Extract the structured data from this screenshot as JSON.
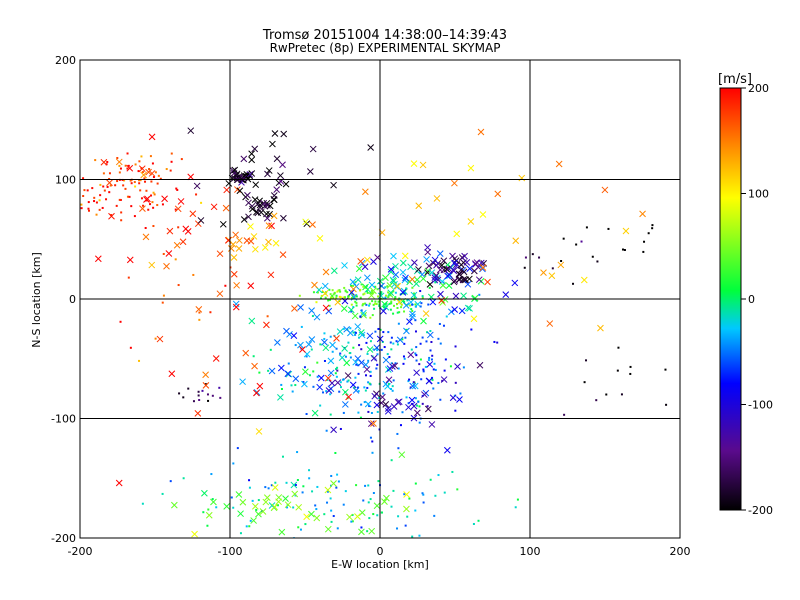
{
  "chart_data": {
    "type": "scatter",
    "title": "Tromsø 20151004 14:38:00–14:39:43",
    "subtitle": "RwPretec (8p) EXPERIMENTAL SKYMAP",
    "xlabel": "E-W location [km]",
    "ylabel": "N-S location [km]",
    "xlim": [
      -200,
      200
    ],
    "ylim": [
      -200,
      200
    ],
    "xticks": [
      "-200",
      "-100",
      "0",
      "100",
      "200"
    ],
    "yticks": [
      "-200",
      "-100",
      "0",
      "100",
      "200"
    ],
    "grid": true,
    "gridlines_x": [
      -100,
      0,
      100
    ],
    "gridlines_y": [
      -100,
      0,
      100
    ],
    "colorbar": {
      "label": "[m/s]",
      "range": [
        -200,
        200
      ],
      "ticks": [
        "200",
        "100",
        "0",
        "-100",
        "-200"
      ],
      "colors": [
        "#000000",
        "#5a0a8c",
        "#0000ff",
        "#00c8ff",
        "#00ff3c",
        "#ffff00",
        "#ff8c00",
        "#ff0000"
      ],
      "placement": "right"
    },
    "point_markers": [
      "dot",
      "x"
    ],
    "clusters": [
      {
        "velocity": 180,
        "marker": "dot",
        "center": [
          -170,
          95
        ],
        "spread": [
          18,
          14
        ],
        "count": 110
      },
      {
        "velocity": 185,
        "marker": "x",
        "center": [
          -150,
          70
        ],
        "spread": [
          40,
          35
        ],
        "count": 45
      },
      {
        "velocity": 175,
        "marker": "dot",
        "center": [
          -140,
          20
        ],
        "spread": [
          30,
          40
        ],
        "count": 20
      },
      {
        "velocity": -195,
        "marker": "x",
        "center": [
          -92,
          100
        ],
        "spread": [
          5,
          3
        ],
        "count": 25
      },
      {
        "velocity": -195,
        "marker": "x",
        "center": [
          -78,
          77
        ],
        "spread": [
          6,
          6
        ],
        "count": 25
      },
      {
        "velocity": -190,
        "marker": "x",
        "center": [
          -70,
          110
        ],
        "spread": [
          30,
          20
        ],
        "count": 30
      },
      {
        "velocity": 130,
        "marker": "x",
        "center": [
          -85,
          50
        ],
        "spread": [
          10,
          8
        ],
        "count": 18
      },
      {
        "velocity": -170,
        "marker": "dot",
        "center": [
          -115,
          -78
        ],
        "spread": [
          8,
          5
        ],
        "count": 14
      },
      {
        "velocity": 45,
        "marker": "dot",
        "center": [
          -25,
          3
        ],
        "spread": [
          12,
          4
        ],
        "count": 60
      },
      {
        "velocity": 25,
        "marker": "dot",
        "center": [
          5,
          0
        ],
        "spread": [
          12,
          6
        ],
        "count": 90
      },
      {
        "velocity": -5,
        "marker": "x",
        "center": [
          20,
          8
        ],
        "spread": [
          25,
          12
        ],
        "count": 70
      },
      {
        "velocity": -160,
        "marker": "x",
        "center": [
          50,
          25
        ],
        "spread": [
          12,
          8
        ],
        "count": 45
      },
      {
        "velocity": -90,
        "marker": "x",
        "center": [
          35,
          20
        ],
        "spread": [
          20,
          15
        ],
        "count": 30
      },
      {
        "velocity": -200,
        "marker": "dot",
        "center": [
          140,
          45
        ],
        "spread": [
          25,
          12
        ],
        "count": 22
      },
      {
        "velocity": -30,
        "marker": "dot",
        "center": [
          -10,
          -50
        ],
        "spread": [
          30,
          30
        ],
        "count": 150
      },
      {
        "velocity": -75,
        "marker": "dot",
        "center": [
          20,
          -60
        ],
        "spread": [
          25,
          30
        ],
        "count": 90
      },
      {
        "velocity": -40,
        "marker": "x",
        "center": [
          -20,
          -40
        ],
        "spread": [
          30,
          30
        ],
        "count": 80
      },
      {
        "velocity": -120,
        "marker": "x",
        "center": [
          10,
          -80
        ],
        "spread": [
          25,
          20
        ],
        "count": 40
      },
      {
        "velocity": -20,
        "marker": "dot",
        "center": [
          -30,
          -170
        ],
        "spread": [
          50,
          20
        ],
        "count": 120
      },
      {
        "velocity": 40,
        "marker": "x",
        "center": [
          -50,
          -170
        ],
        "spread": [
          40,
          20
        ],
        "count": 50
      },
      {
        "velocity": 130,
        "marker": "x",
        "center": [
          60,
          55
        ],
        "spread": [
          60,
          40
        ],
        "count": 40
      },
      {
        "velocity": 170,
        "marker": "x",
        "center": [
          -80,
          -30
        ],
        "spread": [
          60,
          50
        ],
        "count": 30
      },
      {
        "velocity": -200,
        "marker": "dot",
        "center": [
          150,
          -70
        ],
        "spread": [
          25,
          15
        ],
        "count": 12
      }
    ]
  }
}
